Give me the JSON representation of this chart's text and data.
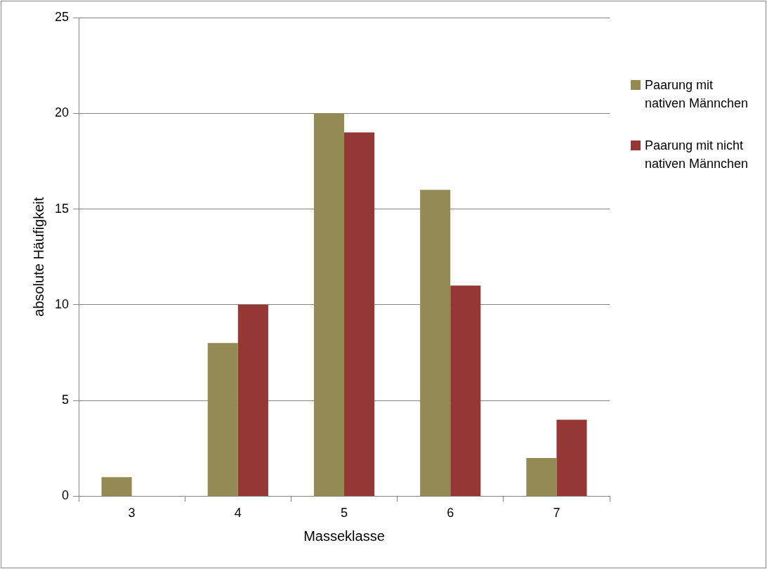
{
  "chart_data": {
    "type": "bar",
    "xlabel": "Masseklasse",
    "ylabel": "absolute Häufigkeit",
    "categories": [
      "3",
      "4",
      "5",
      "6",
      "7"
    ],
    "series": [
      {
        "name": "Paarung mit nativen Männchen",
        "color": "#948a54",
        "values": [
          1,
          8,
          20,
          16,
          2
        ]
      },
      {
        "name": "Paarung mit nicht nativen Männchen",
        "color": "#953735",
        "values": [
          0,
          10,
          19,
          11,
          4
        ]
      }
    ],
    "ylim": [
      0,
      25
    ],
    "yticks": [
      0,
      5,
      10,
      15,
      20,
      25
    ],
    "grid": "y",
    "legend": "right"
  }
}
